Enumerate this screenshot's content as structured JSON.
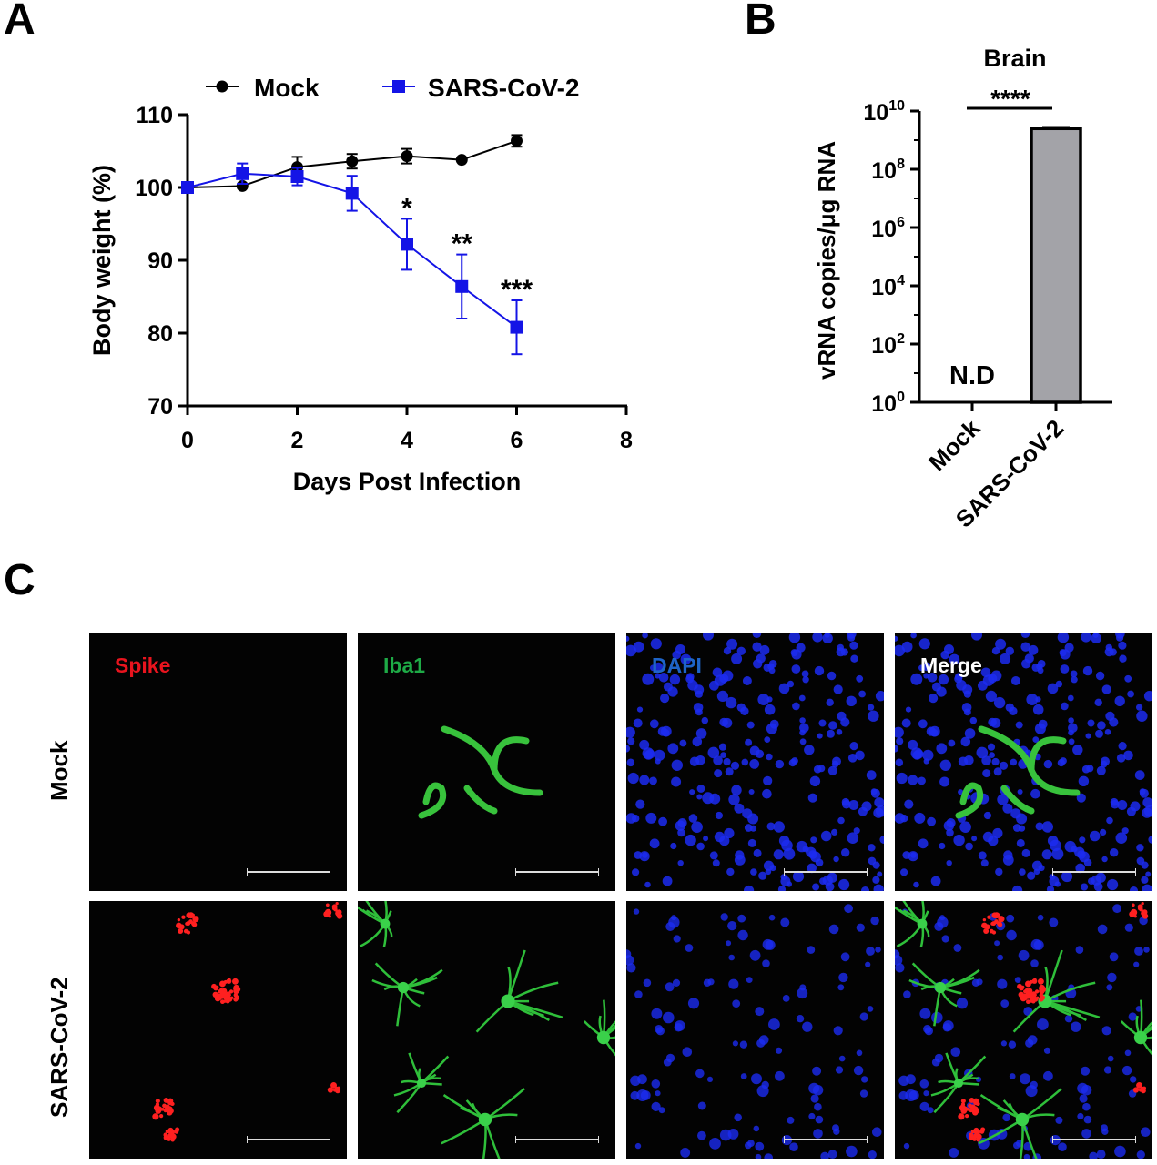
{
  "panel_letters": {
    "a": "A",
    "b": "B",
    "c": "C"
  },
  "chart_data": [
    {
      "type": "line",
      "panel": "A",
      "xlabel": "Days Post Infection",
      "ylabel": "Body weight (%)",
      "xlim": [
        0,
        8
      ],
      "ylim": [
        70,
        110
      ],
      "xticks": [
        "0",
        "2",
        "4",
        "6",
        "8"
      ],
      "yticks": [
        "70",
        "80",
        "90",
        "100",
        "110"
      ],
      "legend": "top",
      "series": [
        {
          "name": "Mock",
          "marker": "circle",
          "color": "#000000",
          "x": [
            0,
            1,
            2,
            3,
            4,
            5,
            6
          ],
          "y": [
            100,
            100.2,
            102.8,
            103.6,
            104.3,
            103.8,
            106.4
          ],
          "err": [
            0,
            0,
            1.4,
            1.0,
            1.0,
            0,
            0.8
          ]
        },
        {
          "name": "SARS-CoV-2",
          "marker": "square",
          "color": "#1414e6",
          "x": [
            0,
            1,
            2,
            3,
            4,
            5,
            6
          ],
          "y": [
            100,
            101.9,
            101.5,
            99.2,
            92.2,
            86.4,
            80.8
          ],
          "err": [
            0,
            1.4,
            1.2,
            2.4,
            3.5,
            4.4,
            3.7
          ]
        }
      ],
      "annotations": [
        {
          "x": 4,
          "text": "*"
        },
        {
          "x": 5,
          "text": "**"
        },
        {
          "x": 6,
          "text": "***"
        }
      ]
    },
    {
      "type": "bar",
      "panel": "B",
      "title": "Brain",
      "ylabel": "vRNA copies/μg RNA",
      "yscale": "log",
      "ylim_exponent": [
        0,
        10
      ],
      "ytick_exponents": [
        "0",
        "2",
        "4",
        "6",
        "8",
        "10"
      ],
      "ytick_base": "10",
      "categories": [
        "Mock",
        "SARS-CoV-2"
      ],
      "values": [
        null,
        2500000000
      ],
      "error_upper": 2800000000,
      "bar_color": "#a3a3a8",
      "not_detected_label": "N.D",
      "significance": "****"
    }
  ],
  "micrographs": {
    "columns": [
      {
        "label": "Spike",
        "color": "#e8141e"
      },
      {
        "label": "Iba1",
        "color": "#1eaa46"
      },
      {
        "label": "DAPI",
        "color": "#1e64c8"
      },
      {
        "label": "Merge",
        "color": "#ffffff"
      }
    ],
    "rows": [
      "Mock",
      "SARS-CoV-2"
    ]
  }
}
